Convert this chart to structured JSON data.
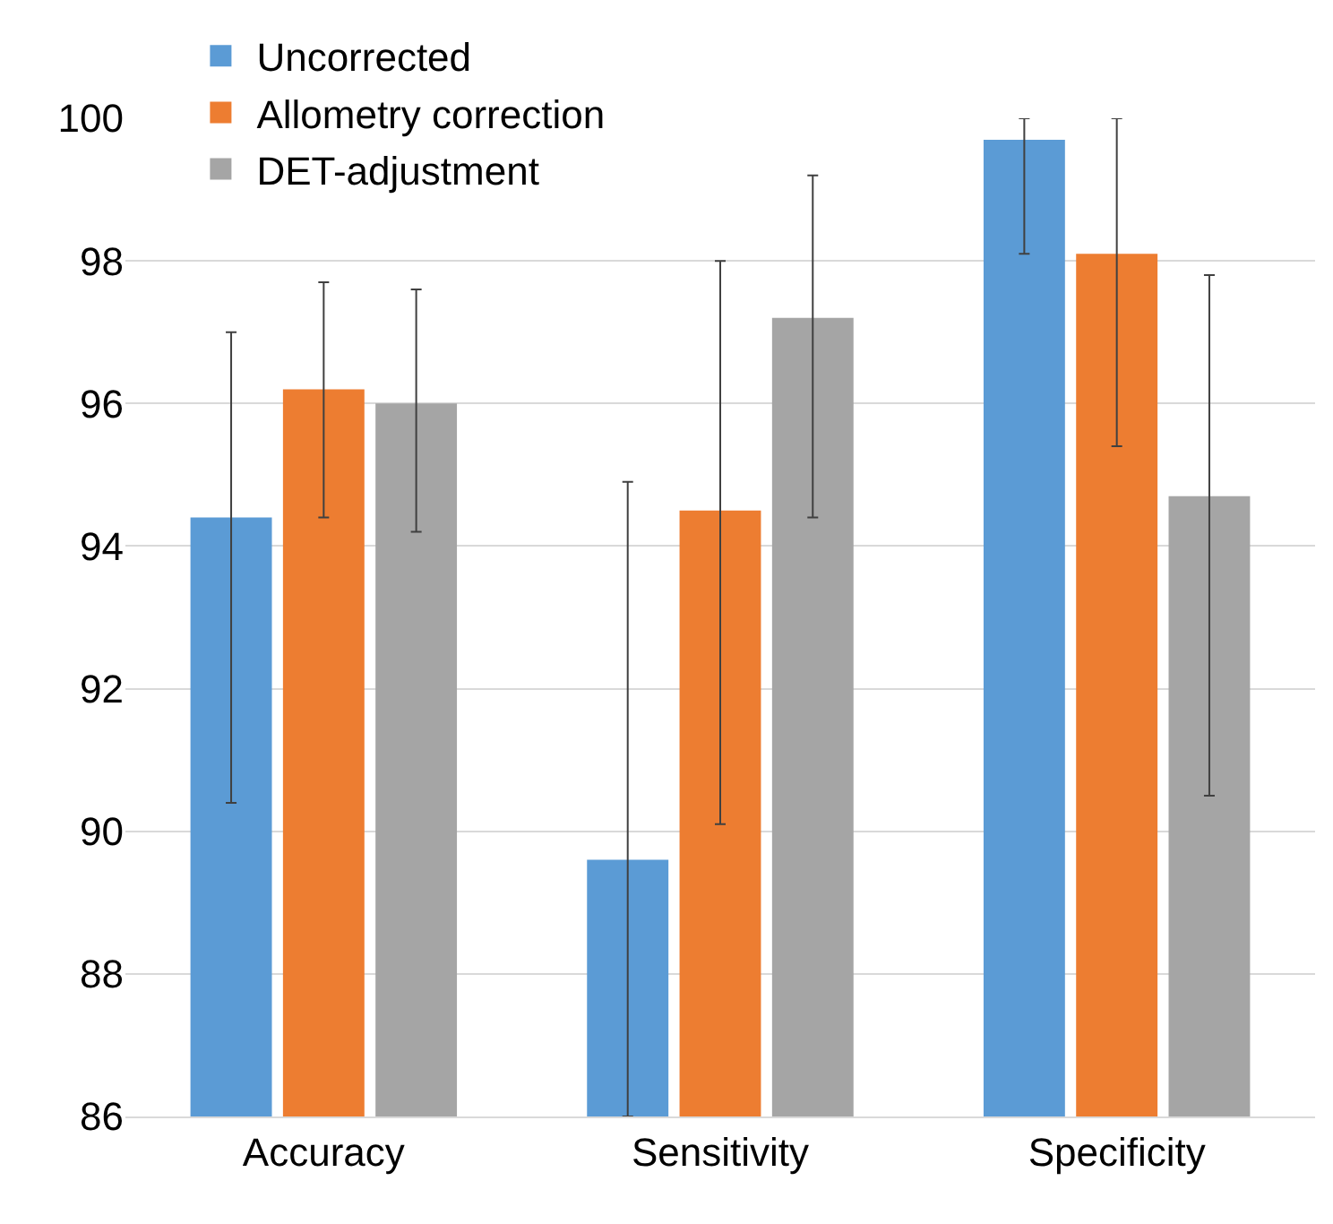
{
  "chart_data": {
    "type": "bar",
    "categories": [
      "Accuracy",
      "Sensitivity",
      "Specificity"
    ],
    "series": [
      {
        "name": "Uncorrected",
        "color": "#5b9bd5",
        "values": [
          94.4,
          89.6,
          99.7
        ],
        "errors": [
          [
            90.4,
            97.0
          ],
          [
            86,
            94.9
          ],
          [
            98.1,
            100
          ]
        ]
      },
      {
        "name": "Allometry correction",
        "color": "#ed7d31",
        "values": [
          96.2,
          94.5,
          98.1
        ],
        "errors": [
          [
            94.4,
            97.7
          ],
          [
            90.1,
            98.0
          ],
          [
            95.4,
            100
          ]
        ]
      },
      {
        "name": "DET-adjustment",
        "color": "#a5a5a5",
        "values": [
          96.0,
          97.2,
          94.7
        ],
        "errors": [
          [
            94.2,
            97.6
          ],
          [
            94.4,
            99.2
          ],
          [
            90.5,
            97.8
          ]
        ]
      }
    ],
    "ylim": [
      86,
      100
    ],
    "yticks": [
      86,
      88,
      90,
      92,
      94,
      96,
      98,
      100
    ],
    "grid": "y",
    "legend": "top left"
  }
}
